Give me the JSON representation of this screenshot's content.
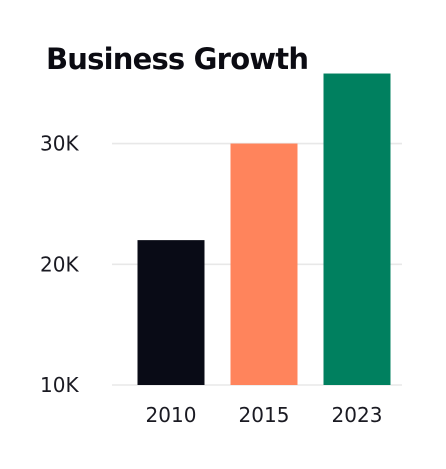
{
  "chart_data": {
    "type": "bar",
    "title": "Business Growth",
    "xlabel": "",
    "ylabel": "",
    "categories": [
      "2010",
      "2015",
      "2023"
    ],
    "values": [
      22000,
      30000,
      35800
    ],
    "colors": [
      "#090b16",
      "#ff845c",
      "#00805f"
    ],
    "ylim": [
      10000,
      37500
    ],
    "yticks": [
      10000,
      20000,
      30000
    ],
    "ytick_labels": [
      "10K",
      "20K",
      "30K"
    ],
    "grid": true,
    "grid_color": "#e8e8e8",
    "legend": "none"
  }
}
